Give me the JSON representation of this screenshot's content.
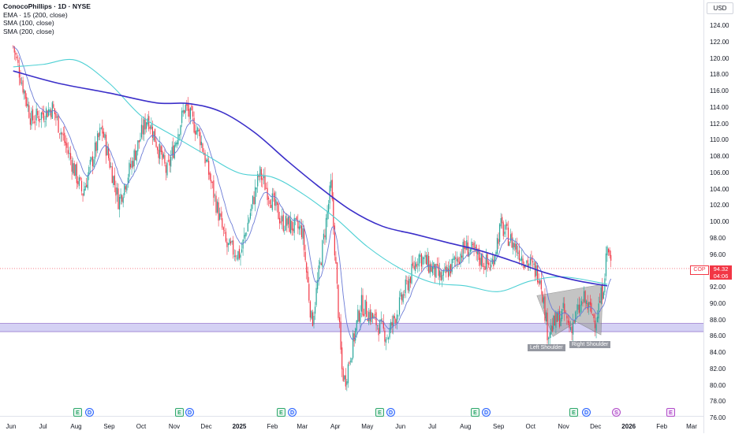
{
  "header": {
    "symbol_title": "ConocoPhillips · 1D · NYSE",
    "indicators": [
      "EMA · 15 (200, close)",
      "SMA (100, close)",
      "SMA (200, close)"
    ],
    "currency": "USD"
  },
  "price_axis": {
    "labels": [
      "124.00",
      "122.00",
      "120.00",
      "118.00",
      "116.00",
      "114.00",
      "112.00",
      "110.00",
      "108.00",
      "106.00",
      "104.00",
      "102.00",
      "100.00",
      "98.00",
      "96.00",
      "92.00",
      "90.00",
      "88.00",
      "86.00",
      "84.00",
      "82.00",
      "80.00",
      "78.00",
      "76.00"
    ]
  },
  "last_price": {
    "symbol": "COP",
    "price": "94.32",
    "countdown": "04:06"
  },
  "time_axis": {
    "labels": [
      "Jun",
      "Jul",
      "Aug",
      "Sep",
      "Oct",
      "Nov",
      "Dec",
      "2025",
      "Feb",
      "Mar",
      "Apr",
      "May",
      "Jun",
      "Jul",
      "Aug",
      "Sep",
      "Oct",
      "Nov",
      "Dec",
      "2026",
      "Feb",
      "Mar"
    ]
  },
  "events": [
    "E",
    "D",
    "E",
    "D",
    "E",
    "D",
    "E",
    "D",
    "E",
    "D",
    "E",
    "D",
    "S",
    "E"
  ],
  "pattern_labels": {
    "left": "Left Shoulder",
    "right": "Right Shoulder"
  },
  "colors": {
    "up": "#26a69a",
    "down": "#f23645",
    "ema": "#6b7bd6",
    "sma100": "#4dd0d4",
    "sma200": "#3b2fc9",
    "support_zone": "#c6c1f0"
  },
  "chart_data": {
    "type": "candlestick",
    "title": "ConocoPhillips · 1D · NYSE",
    "ylim": [
      76,
      125
    ],
    "price_ticks": [
      76,
      78,
      80,
      82,
      84,
      86,
      88,
      90,
      92,
      96,
      98,
      100,
      102,
      104,
      106,
      108,
      110,
      112,
      114,
      116,
      118,
      120,
      122,
      124
    ],
    "current_price": 94.32,
    "support_zone": [
      86.6,
      87.6
    ],
    "sma200_path": [
      [
        "2024-06-03",
        118.5
      ],
      [
        "2024-07-15",
        117.0
      ],
      [
        "2024-09-01",
        115.8
      ],
      [
        "2024-10-15",
        114.6
      ],
      [
        "2024-11-15",
        114.5
      ],
      [
        "2024-12-15",
        113.5
      ],
      [
        "2025-01-15",
        111.0
      ],
      [
        "2025-02-15",
        107.5
      ],
      [
        "2025-03-15",
        104.5
      ],
      [
        "2025-04-15",
        101.5
      ],
      [
        "2025-05-15",
        99.5
      ],
      [
        "2025-06-15",
        98.5
      ],
      [
        "2025-07-15",
        97.5
      ],
      [
        "2025-08-15",
        96.5
      ],
      [
        "2025-09-15",
        95.2
      ],
      [
        "2025-10-15",
        93.8
      ],
      [
        "2025-11-15",
        92.8
      ],
      [
        "2025-12-12",
        92.2
      ]
    ],
    "sma100_path": [
      [
        "2024-06-03",
        119.0
      ],
      [
        "2024-07-01",
        119.3
      ],
      [
        "2024-08-01",
        119.8
      ],
      [
        "2024-09-01",
        117.0
      ],
      [
        "2024-10-01",
        113.0
      ],
      [
        "2024-11-01",
        110.5
      ],
      [
        "2024-12-01",
        108.2
      ],
      [
        "2025-01-01",
        106.0
      ],
      [
        "2025-02-01",
        105.5
      ],
      [
        "2025-03-01",
        103.5
      ],
      [
        "2025-04-01",
        100.5
      ],
      [
        "2025-05-01",
        97.0
      ],
      [
        "2025-06-01",
        94.3
      ],
      [
        "2025-07-01",
        92.6
      ],
      [
        "2025-08-01",
        92.2
      ],
      [
        "2025-09-01",
        91.5
      ],
      [
        "2025-10-01",
        92.8
      ],
      [
        "2025-11-01",
        93.3
      ],
      [
        "2025-12-12",
        92.4
      ]
    ],
    "ohlc_sample_path": [
      [
        "2024-06-03",
        121.5
      ],
      [
        "2024-06-20",
        112.5
      ],
      [
        "2024-07-10",
        114.0
      ],
      [
        "2024-08-07",
        103.5
      ],
      [
        "2024-08-25",
        111.5
      ],
      [
        "2024-09-10",
        102.5
      ],
      [
        "2024-10-07",
        113.0
      ],
      [
        "2024-10-25",
        106.0
      ],
      [
        "2024-11-11",
        114.2
      ],
      [
        "2024-11-25",
        110.5
      ],
      [
        "2024-12-20",
        97.0
      ],
      [
        "2025-01-02",
        96.0
      ],
      [
        "2025-01-20",
        106.0
      ],
      [
        "2025-02-10",
        100.0
      ],
      [
        "2025-03-01",
        99.0
      ],
      [
        "2025-03-10",
        87.5
      ],
      [
        "2025-03-28",
        104.5
      ],
      [
        "2025-04-07",
        82.0
      ],
      [
        "2025-04-10",
        80.5
      ],
      [
        "2025-04-25",
        90.0
      ],
      [
        "2025-05-20",
        86.0
      ],
      [
        "2025-06-18",
        96.0
      ],
      [
        "2025-07-10",
        93.0
      ],
      [
        "2025-08-01",
        97.0
      ],
      [
        "2025-08-25",
        94.5
      ],
      [
        "2025-09-03",
        99.5
      ],
      [
        "2025-09-25",
        95.5
      ],
      [
        "2025-10-10",
        93.5
      ],
      [
        "2025-10-17",
        86.5
      ],
      [
        "2025-11-01",
        89.0
      ],
      [
        "2025-11-07",
        87.0
      ],
      [
        "2025-11-20",
        90.5
      ],
      [
        "2025-12-01",
        88.0
      ],
      [
        "2025-12-08",
        92.0
      ],
      [
        "2025-12-12",
        97.0
      ],
      [
        "2025-12-16",
        94.32
      ]
    ]
  }
}
